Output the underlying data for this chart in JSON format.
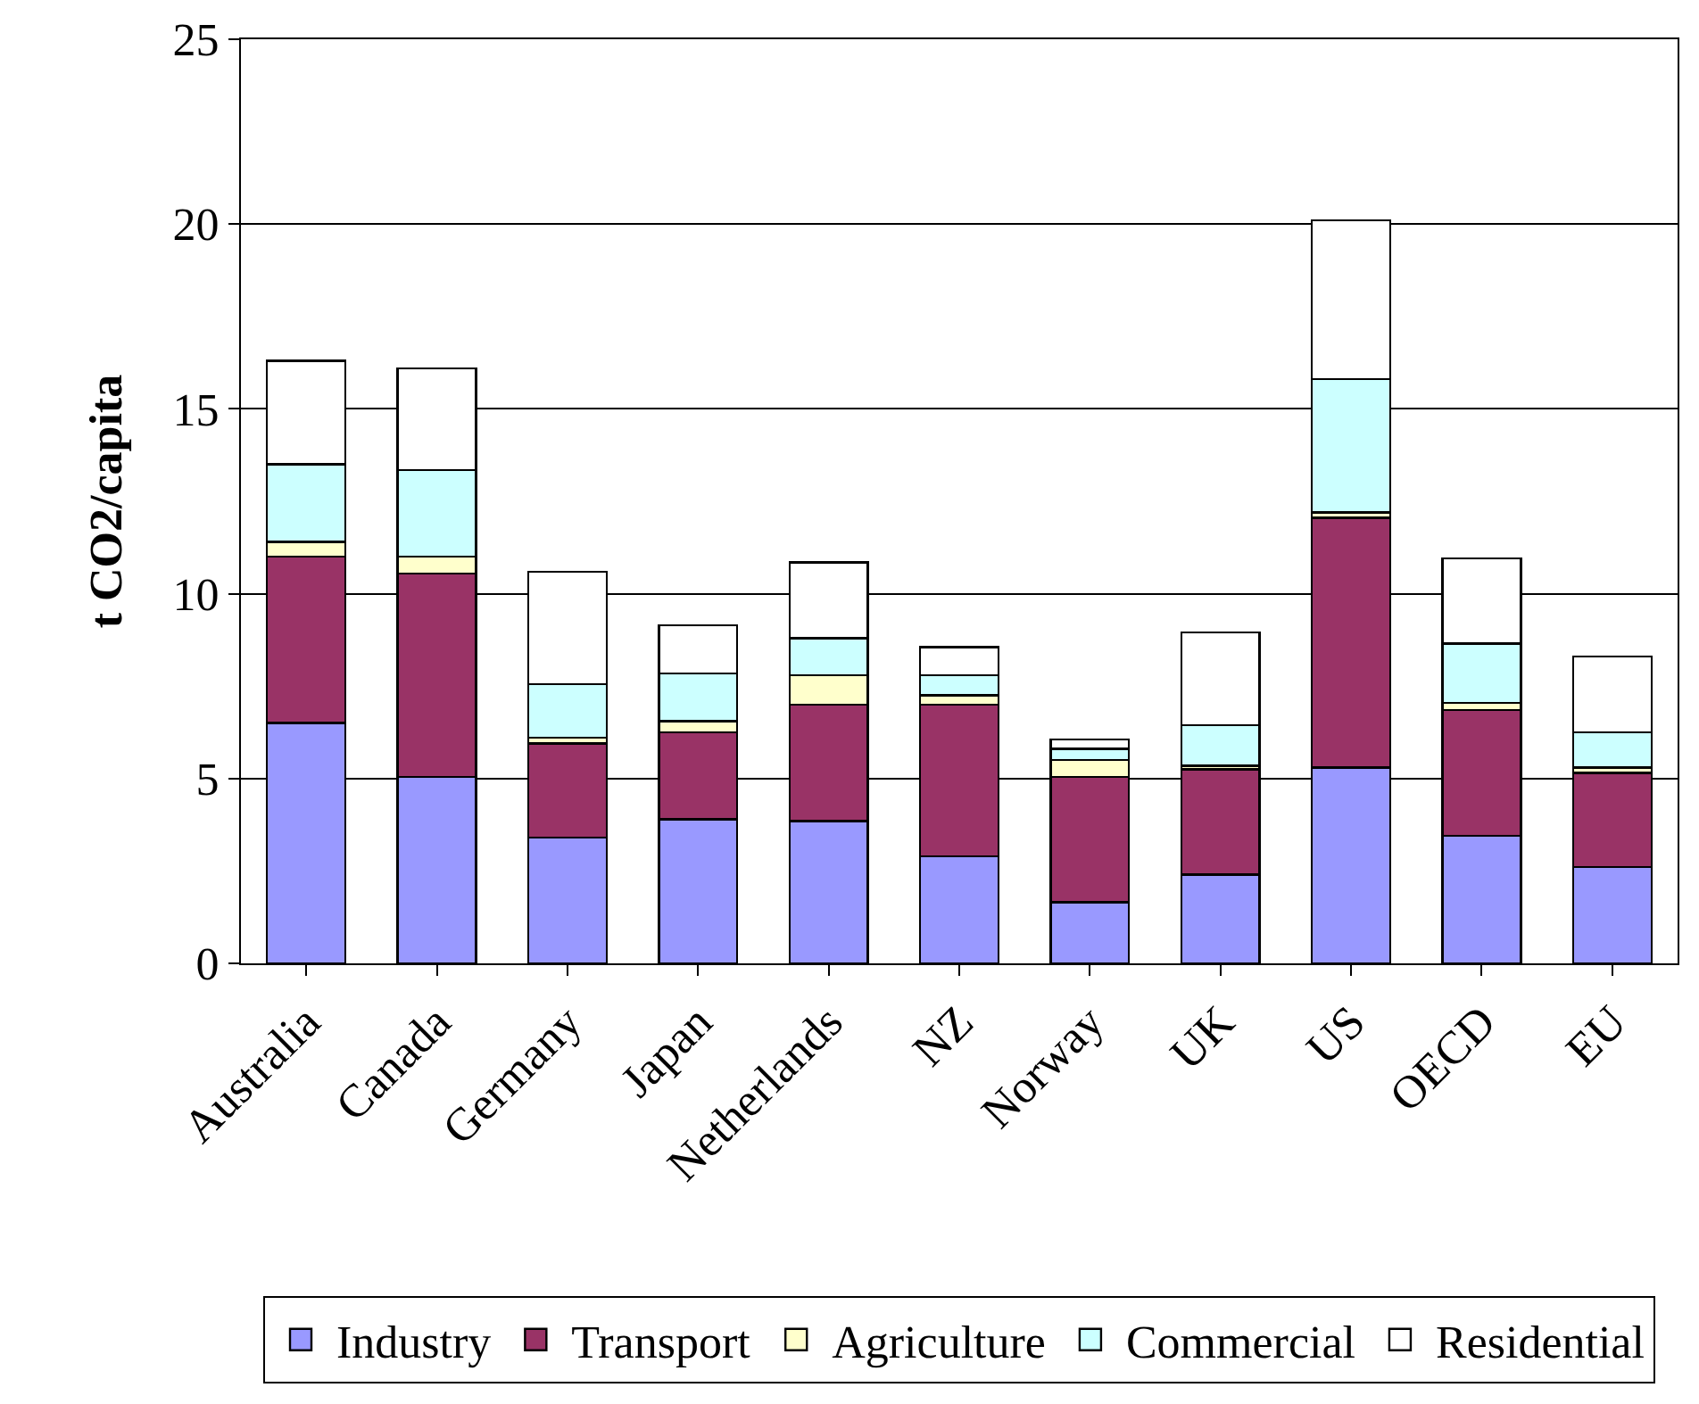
{
  "chart_data": {
    "type": "bar",
    "stacked": true,
    "ylabel": "t CO2/capita",
    "categories": [
      "Australia",
      "Canada",
      "Germany",
      "Japan",
      "Netherlands",
      "NZ",
      "Norway",
      "UK",
      "US",
      "OECD",
      "EU"
    ],
    "series": [
      {
        "name": "Industry",
        "color": "#9999ff",
        "values": [
          6.5,
          5.05,
          3.4,
          3.9,
          3.85,
          2.9,
          1.65,
          2.4,
          5.3,
          3.45,
          2.6
        ]
      },
      {
        "name": "Transport",
        "color": "#993366",
        "values": [
          4.5,
          5.5,
          2.55,
          2.35,
          3.15,
          4.1,
          3.4,
          2.85,
          6.75,
          3.4,
          2.55
        ]
      },
      {
        "name": "Agriculture",
        "color": "#ffffcc",
        "values": [
          0.4,
          0.45,
          0.15,
          0.3,
          0.8,
          0.25,
          0.45,
          0.1,
          0.15,
          0.2,
          0.15
        ]
      },
      {
        "name": "Commercial",
        "color": "#ccffff",
        "values": [
          2.1,
          2.35,
          1.45,
          1.3,
          1.0,
          0.55,
          0.3,
          1.1,
          3.6,
          1.6,
          0.95
        ]
      },
      {
        "name": "Residential",
        "color": "#ffffff",
        "values": [
          2.8,
          2.75,
          3.05,
          1.3,
          2.05,
          0.75,
          0.25,
          2.5,
          4.3,
          2.3,
          2.05
        ]
      }
    ],
    "ylim": [
      0,
      25
    ],
    "yticks": [
      0,
      5,
      10,
      15,
      20,
      25
    ],
    "grid": "y",
    "legend": "bottom"
  }
}
